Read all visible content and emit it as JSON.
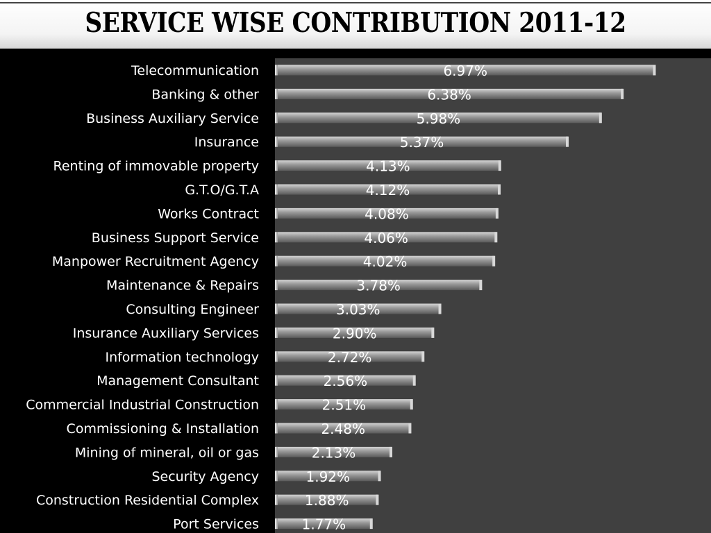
{
  "title": "SERVICE WISE CONTRIBUTION 2011-12",
  "colors": {
    "background": "#000000",
    "plot_area": "#404040",
    "bar": "#8a8a8a",
    "text": "#ffffff",
    "title_band": "#ffffff"
  },
  "chart_data": {
    "type": "bar",
    "orientation": "horizontal",
    "title": "SERVICE WISE CONTRIBUTION 2011-12",
    "xlabel": "",
    "ylabel": "",
    "xlim": [
      0,
      7
    ],
    "grid": false,
    "legend": "none",
    "categories": [
      "Telecommunication",
      "Banking & other",
      "Business Auxiliary Service",
      "Insurance",
      "Renting of immovable property",
      "G.T.O/G.T.A",
      "Works Contract",
      "Business Support Service",
      "Manpower Recruitment Agency",
      "Maintenance & Repairs",
      "Consulting Engineer",
      "Insurance Auxiliary Services",
      "Information technology",
      "Management Consultant",
      "Commercial Industrial Construction",
      "Commissioning & Installation",
      "Mining of mineral, oil or gas",
      "Security  Agency",
      "Construction Residential Complex",
      "Port Services"
    ],
    "values": [
      6.97,
      6.38,
      5.98,
      5.37,
      4.13,
      4.12,
      4.08,
      4.06,
      4.02,
      3.78,
      3.03,
      2.9,
      2.72,
      2.56,
      2.51,
      2.48,
      2.13,
      1.92,
      1.88,
      1.77
    ],
    "data_labels": [
      "6.97%",
      "6.38%",
      "5.98%",
      "5.37%",
      "4.13%",
      "4.12%",
      "4.08%",
      "4.06%",
      "4.02%",
      "3.78%",
      "3.03%",
      "2.90%",
      "2.72%",
      "2.56%",
      "2.51%",
      "2.48%",
      "2.13%",
      "1.92%",
      "1.88%",
      "1.77%"
    ]
  }
}
